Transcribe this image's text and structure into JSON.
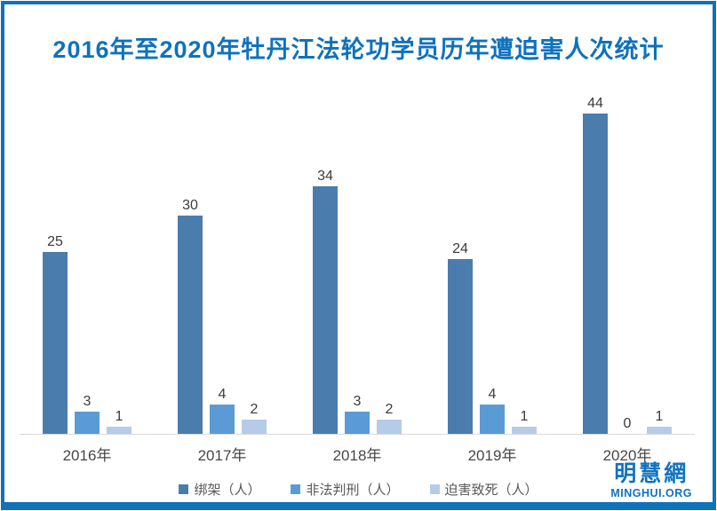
{
  "title": "2016年至2020年牡丹江法轮功学员历年遭迫害人次统计",
  "colors": {
    "frame_border": "#1072BA",
    "title_text": "#0F72BC",
    "axis_line": "#D9D9D9",
    "value_label_text": "#3B3B3B",
    "series_kidnapped": "#4B7CAE",
    "series_sentenced": "#5B9BD5",
    "series_death": "#B5CCE9"
  },
  "chart_data": {
    "type": "bar",
    "title": "2016年至2020年牡丹江法轮功学员历年遭迫害人次统计",
    "categories": [
      "2016年",
      "2017年",
      "2018年",
      "2019年",
      "2020年"
    ],
    "series": [
      {
        "name": "绑架（人）",
        "color": "#4B7CAE",
        "values": [
          25,
          30,
          34,
          24,
          44
        ]
      },
      {
        "name": "非法判刑（人）",
        "color": "#5B9BD5",
        "values": [
          3,
          4,
          3,
          4,
          0
        ]
      },
      {
        "name": "迫害致死（人）",
        "color": "#B5CCE9",
        "values": [
          1,
          2,
          2,
          1,
          1
        ]
      }
    ],
    "xlabel": "",
    "ylabel": "",
    "ylim": [
      0,
      44
    ],
    "grid": false,
    "data_labels": true,
    "legend_position": "bottom"
  },
  "logo": {
    "name_zh": "明慧網",
    "name_en": "MINGHUI.ORG"
  }
}
